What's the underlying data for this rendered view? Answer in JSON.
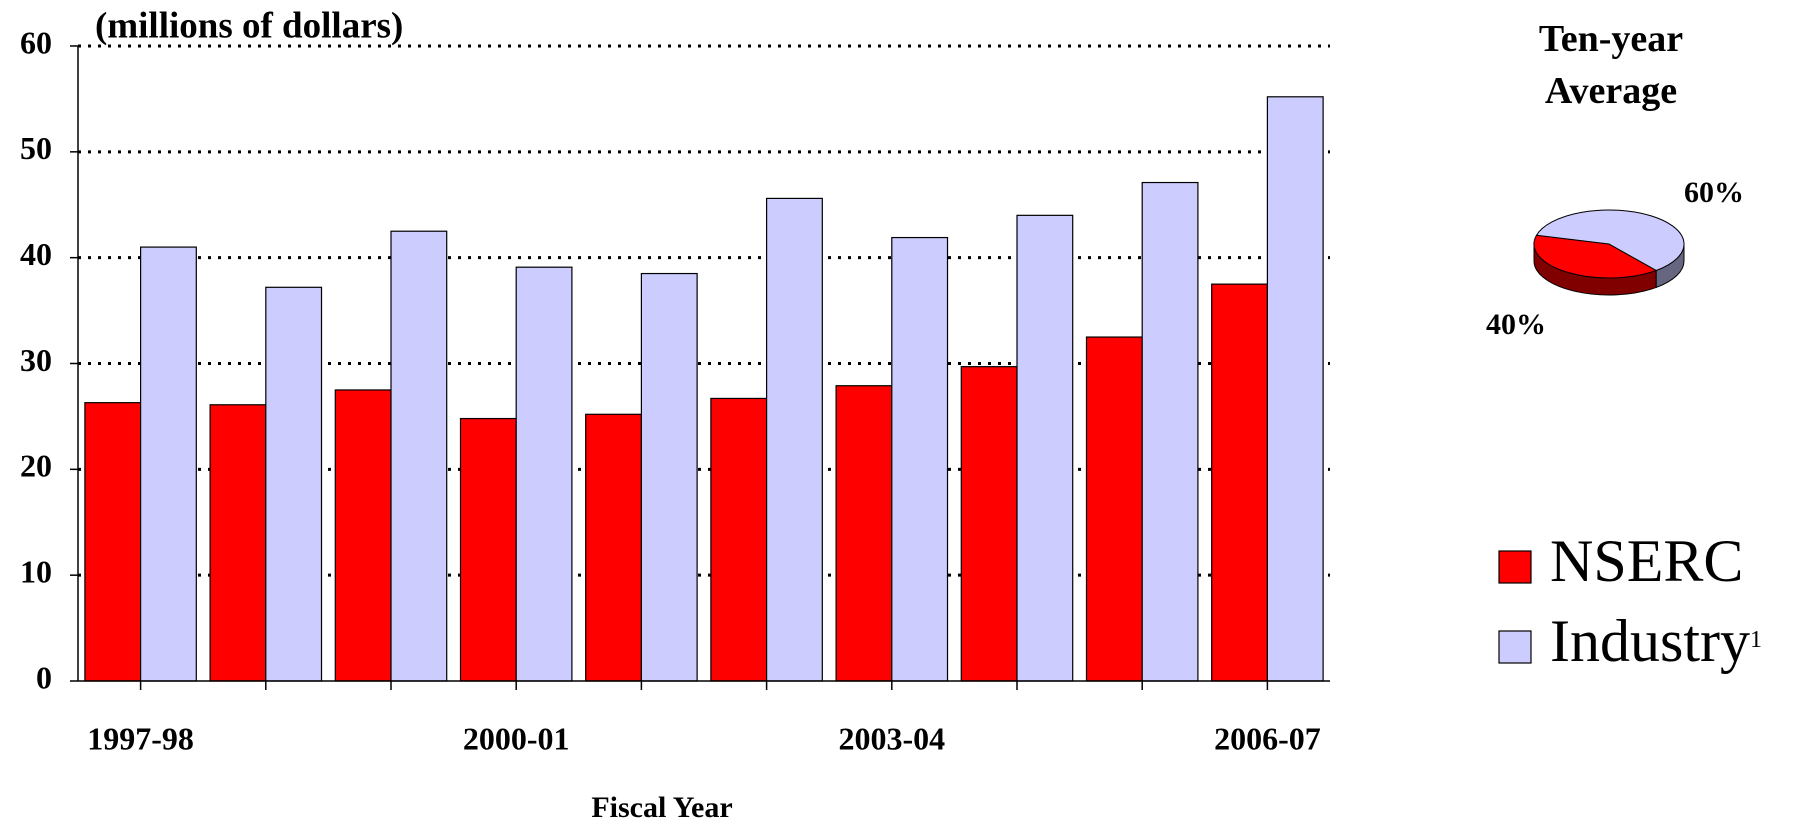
{
  "chart_data": [
    {
      "type": "bar",
      "y_label": "(millions of dollars)",
      "x_label": "Fiscal Year",
      "categories": [
        "1997-98",
        null,
        null,
        "2000-01",
        null,
        null,
        "2003-04",
        null,
        null,
        "2006-07"
      ],
      "series": [
        {
          "name": "NSERC",
          "color": "#ff0000",
          "values": [
            26.3,
            26.1,
            27.5,
            24.8,
            25.2,
            26.7,
            27.9,
            29.7,
            32.5,
            37.5
          ]
        },
        {
          "name": "Industry",
          "footnote": "1",
          "color": "#ccccff",
          "values": [
            41.0,
            37.2,
            42.5,
            39.1,
            38.5,
            45.6,
            41.9,
            44.0,
            47.1,
            55.2
          ]
        }
      ],
      "ylim": [
        0,
        60
      ],
      "yticks": [
        0,
        10,
        20,
        30,
        40,
        50,
        60
      ],
      "grid": true
    },
    {
      "type": "pie",
      "title": "Ten-year Average",
      "values": [
        40,
        60
      ],
      "value_labels": [
        "40%",
        "60%"
      ],
      "colors": [
        "#ff0000",
        "#ccccff"
      ]
    }
  ]
}
